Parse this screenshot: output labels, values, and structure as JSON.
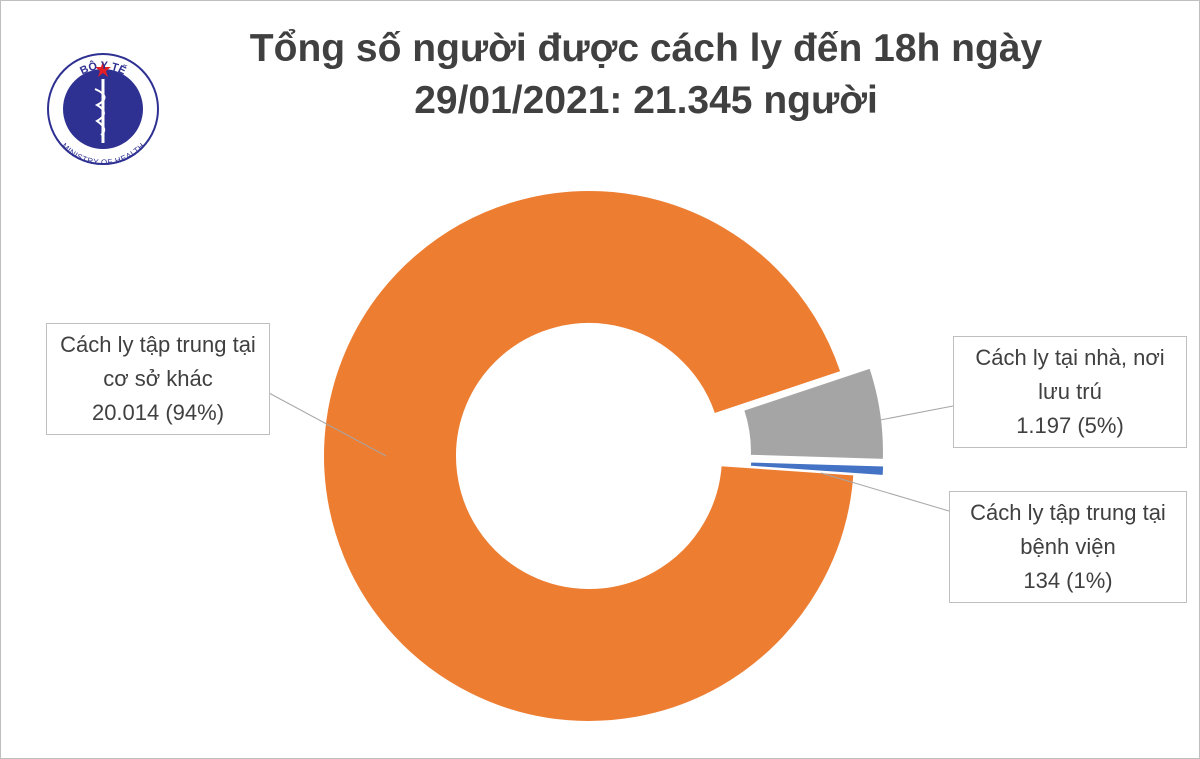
{
  "logo": {
    "top": "BỘ Y TẾ",
    "bottom": "MINISTRY OF HEALTH"
  },
  "chart_data": {
    "type": "donut",
    "title": "Tổng số người được cách ly đến 18h ngày 29/01/2021: 21.345 người",
    "categories": [
      "Cách ly tập trung tại cơ sở khác",
      "Cách ly tại nhà, nơi lưu trú",
      "Cách ly tập trung tại bệnh viện"
    ],
    "values": [
      20014,
      1197,
      134
    ],
    "value_labels": [
      "20.014 (94%)",
      "1.197 (5%)",
      "134 (1%)"
    ],
    "colors": [
      "#ED7D31",
      "#A5A5A5",
      "#4472C4"
    ],
    "explode": [
      0,
      0.11,
      0.11
    ]
  }
}
